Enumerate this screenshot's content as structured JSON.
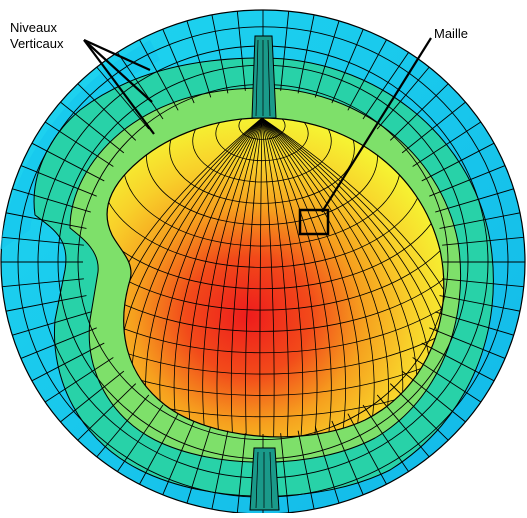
{
  "annotations": {
    "vertical_levels_label_line1": "Niveaux",
    "vertical_levels_label_line2": "Verticaux",
    "cell_label": "Maille"
  },
  "colors": {
    "outer_shell": "#1ee6f0",
    "outer_shell_dark": "#14b4e6",
    "middle_shell": "#24d2a6",
    "inner_shell": "#7fe06a",
    "core_yellow": "#f6f232",
    "core_orange": "#f4a01e",
    "core_red": "#ee2a1c",
    "grid_line": "#000000"
  }
}
